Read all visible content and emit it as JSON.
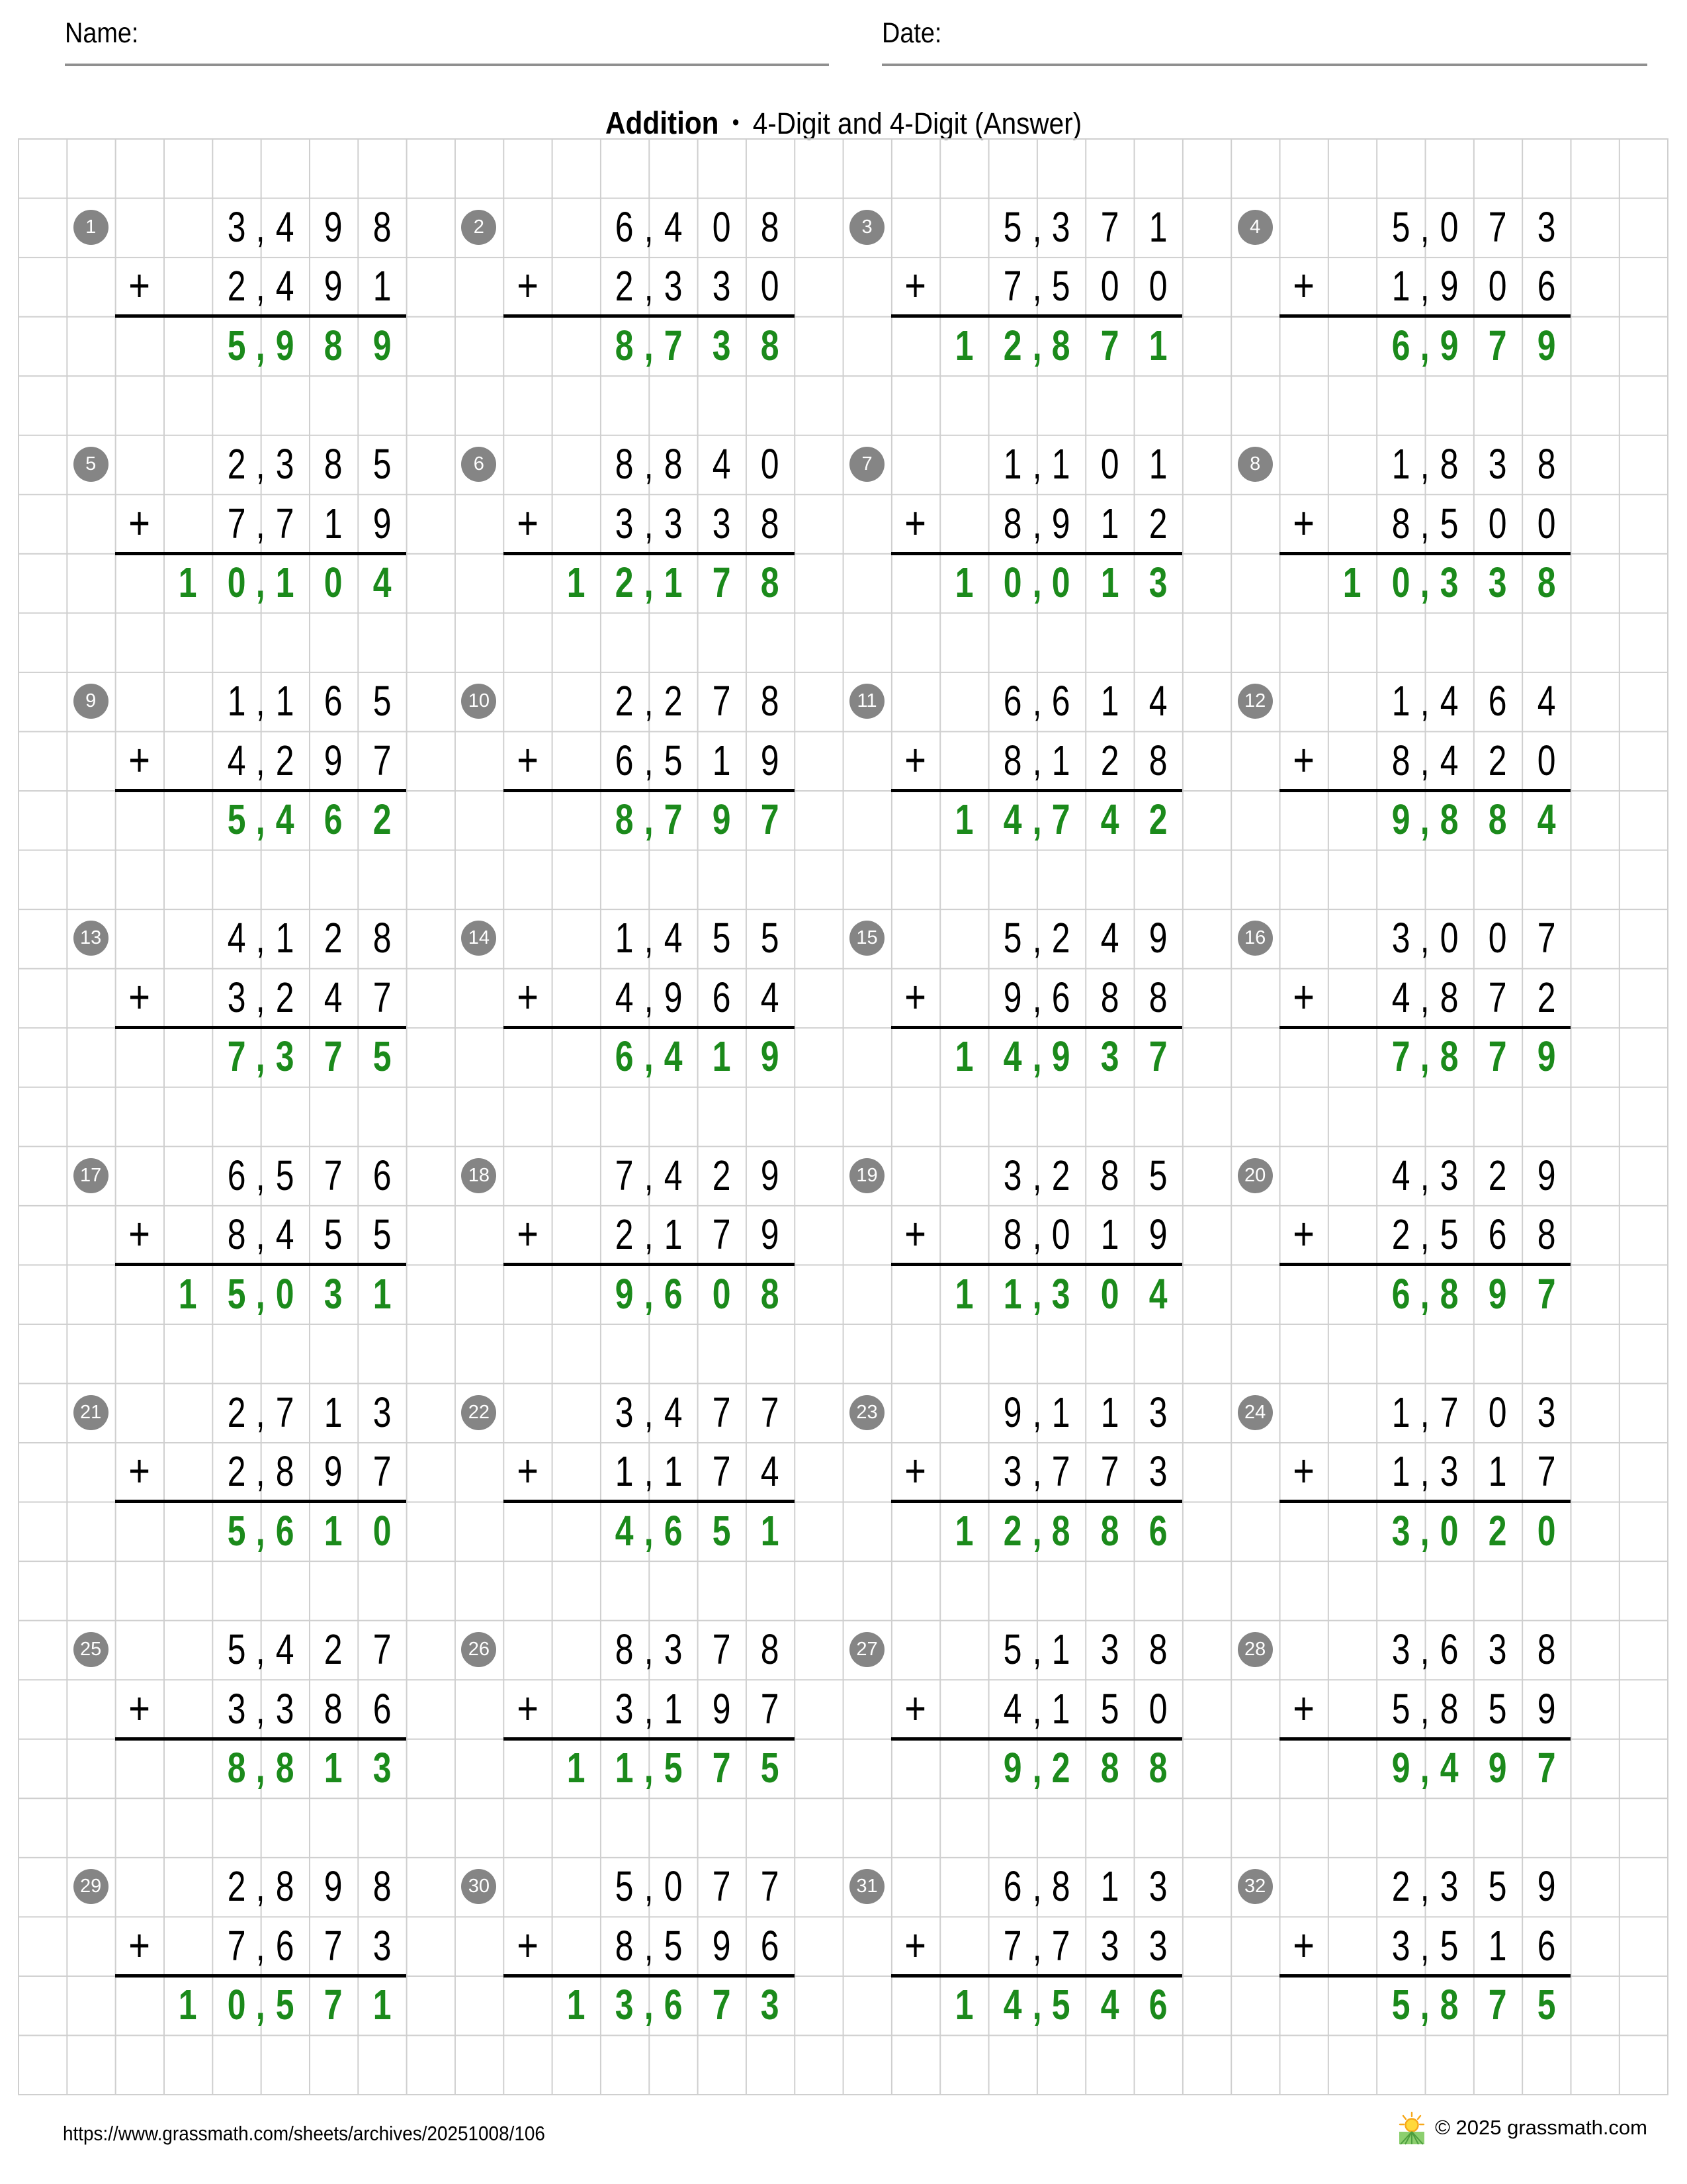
{
  "header": {
    "name_label": "Name:",
    "date_label": "Date:"
  },
  "title": {
    "main": "Addition",
    "separator": "•",
    "subtitle": "4-Digit and 4-Digit (Answer)"
  },
  "plus_sign": "+",
  "colors": {
    "answer_green": "#1b8a1b",
    "badge_gray": "#858585",
    "grid_line": "#cfcfcf",
    "sum_line": "#000000",
    "underline_gray": "#8f8f8f"
  },
  "problems": [
    {
      "number": 1,
      "addend1": "3,498",
      "addend2": "2,491",
      "sum": "5,989"
    },
    {
      "number": 2,
      "addend1": "6,408",
      "addend2": "2,330",
      "sum": "8,738"
    },
    {
      "number": 3,
      "addend1": "5,371",
      "addend2": "7,500",
      "sum": "12,871"
    },
    {
      "number": 4,
      "addend1": "5,073",
      "addend2": "1,906",
      "sum": "6,979"
    },
    {
      "number": 5,
      "addend1": "2,385",
      "addend2": "7,719",
      "sum": "10,104"
    },
    {
      "number": 6,
      "addend1": "8,840",
      "addend2": "3,338",
      "sum": "12,178"
    },
    {
      "number": 7,
      "addend1": "1,101",
      "addend2": "8,912",
      "sum": "10,013"
    },
    {
      "number": 8,
      "addend1": "1,838",
      "addend2": "8,500",
      "sum": "10,338"
    },
    {
      "number": 9,
      "addend1": "1,165",
      "addend2": "4,297",
      "sum": "5,462"
    },
    {
      "number": 10,
      "addend1": "2,278",
      "addend2": "6,519",
      "sum": "8,797"
    },
    {
      "number": 11,
      "addend1": "6,614",
      "addend2": "8,128",
      "sum": "14,742"
    },
    {
      "number": 12,
      "addend1": "1,464",
      "addend2": "8,420",
      "sum": "9,884"
    },
    {
      "number": 13,
      "addend1": "4,128",
      "addend2": "3,247",
      "sum": "7,375"
    },
    {
      "number": 14,
      "addend1": "1,455",
      "addend2": "4,964",
      "sum": "6,419"
    },
    {
      "number": 15,
      "addend1": "5,249",
      "addend2": "9,688",
      "sum": "14,937"
    },
    {
      "number": 16,
      "addend1": "3,007",
      "addend2": "4,872",
      "sum": "7,879"
    },
    {
      "number": 17,
      "addend1": "6,576",
      "addend2": "8,455",
      "sum": "15,031"
    },
    {
      "number": 18,
      "addend1": "7,429",
      "addend2": "2,179",
      "sum": "9,608"
    },
    {
      "number": 19,
      "addend1": "3,285",
      "addend2": "8,019",
      "sum": "11,304"
    },
    {
      "number": 20,
      "addend1": "4,329",
      "addend2": "2,568",
      "sum": "6,897"
    },
    {
      "number": 21,
      "addend1": "2,713",
      "addend2": "2,897",
      "sum": "5,610"
    },
    {
      "number": 22,
      "addend1": "3,477",
      "addend2": "1,174",
      "sum": "4,651"
    },
    {
      "number": 23,
      "addend1": "9,113",
      "addend2": "3,773",
      "sum": "12,886"
    },
    {
      "number": 24,
      "addend1": "1,703",
      "addend2": "1,317",
      "sum": "3,020"
    },
    {
      "number": 25,
      "addend1": "5,427",
      "addend2": "3,386",
      "sum": "8,813"
    },
    {
      "number": 26,
      "addend1": "8,378",
      "addend2": "3,197",
      "sum": "11,575"
    },
    {
      "number": 27,
      "addend1": "5,138",
      "addend2": "4,150",
      "sum": "9,288"
    },
    {
      "number": 28,
      "addend1": "3,638",
      "addend2": "5,859",
      "sum": "9,497"
    },
    {
      "number": 29,
      "addend1": "2,898",
      "addend2": "7,673",
      "sum": "10,571"
    },
    {
      "number": 30,
      "addend1": "5,077",
      "addend2": "8,596",
      "sum": "13,673"
    },
    {
      "number": 31,
      "addend1": "6,813",
      "addend2": "7,733",
      "sum": "14,546"
    },
    {
      "number": 32,
      "addend1": "2,359",
      "addend2": "3,516",
      "sum": "5,875"
    }
  ],
  "footer": {
    "url": "https://www.grassmath.com/sheets/archives/20251008/106",
    "icon": "sunrise-grass-icon",
    "copyright": "© 2025 grassmath.com"
  }
}
